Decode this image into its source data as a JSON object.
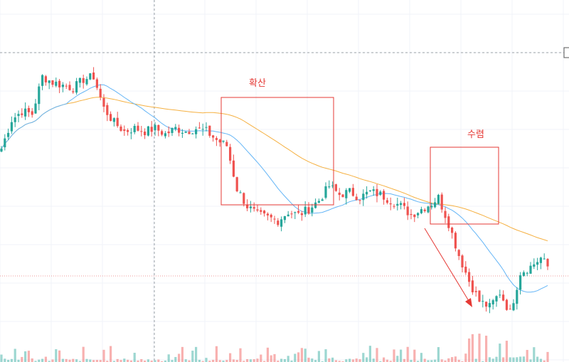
{
  "colors": {
    "up": "#26a69a",
    "down": "#ef5350",
    "ma_short": "#64b5f6",
    "ma_long": "#f5b041",
    "annotation": "#e53935",
    "grid": "#f0f3f8"
  },
  "annotations": {
    "spread_label": "확산",
    "converge_label": "수렴"
  },
  "chart_data": {
    "type": "candlestick",
    "title": "",
    "xlabel": "",
    "ylabel": "",
    "ylim": [
      0,
      100
    ],
    "grid": true,
    "series": [
      {
        "kind": "candles"
      },
      {
        "kind": "moving-average-short"
      },
      {
        "kind": "moving-average-long"
      },
      {
        "kind": "volume"
      }
    ],
    "shape_keypoints": [
      [
        0,
        62
      ],
      [
        3,
        72
      ],
      [
        6,
        75
      ],
      [
        9,
        74
      ],
      [
        12,
        87
      ],
      [
        15,
        85
      ],
      [
        18,
        84
      ],
      [
        21,
        83
      ],
      [
        24,
        86
      ],
      [
        27,
        87
      ],
      [
        30,
        76
      ],
      [
        33,
        71
      ],
      [
        36,
        68
      ],
      [
        39,
        69
      ],
      [
        42,
        68
      ],
      [
        45,
        69
      ],
      [
        48,
        67
      ],
      [
        51,
        69
      ],
      [
        54,
        68
      ],
      [
        57,
        69
      ],
      [
        60,
        68
      ],
      [
        63,
        65
      ],
      [
        66,
        63
      ],
      [
        69,
        48
      ],
      [
        72,
        42
      ],
      [
        75,
        39
      ],
      [
        78,
        38
      ],
      [
        81,
        37
      ],
      [
        84,
        40
      ],
      [
        87,
        39
      ],
      [
        90,
        41
      ],
      [
        93,
        44
      ],
      [
        96,
        49
      ],
      [
        99,
        46
      ],
      [
        102,
        47
      ],
      [
        105,
        45
      ],
      [
        108,
        47
      ],
      [
        111,
        46
      ],
      [
        114,
        44
      ],
      [
        117,
        42
      ],
      [
        120,
        39
      ],
      [
        123,
        41
      ],
      [
        126,
        43
      ],
      [
        128,
        45
      ],
      [
        131,
        36
      ],
      [
        134,
        25
      ],
      [
        137,
        16
      ],
      [
        140,
        9
      ],
      [
        143,
        7
      ],
      [
        146,
        12
      ],
      [
        149,
        5
      ],
      [
        152,
        19
      ],
      [
        155,
        21
      ],
      [
        158,
        24
      ],
      [
        160,
        21
      ]
    ]
  }
}
